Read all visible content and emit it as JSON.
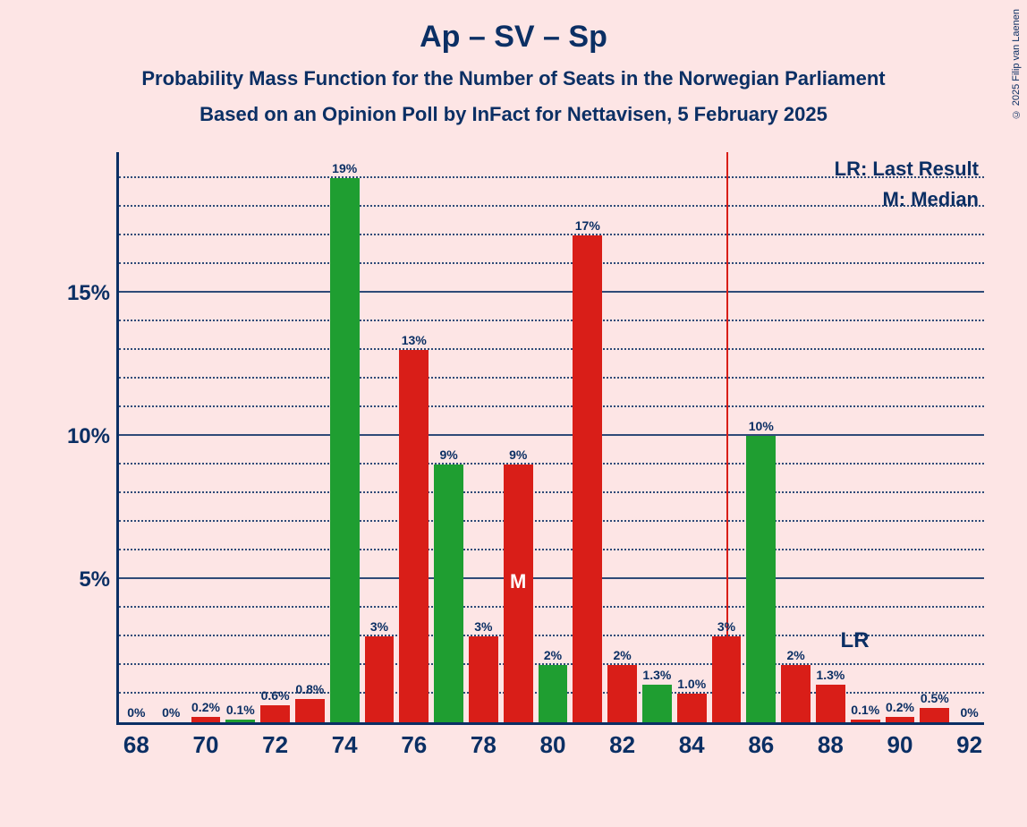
{
  "title": "Ap – SV – Sp",
  "subtitle": "Probability Mass Function for the Number of Seats in the Norwegian Parliament",
  "subtitle2": "Based on an Opinion Poll by InFact for Nettavisen, 5 February 2025",
  "copyright": "© 2025 Filip van Laenen",
  "colors": {
    "red": "#d91e18",
    "green": "#1f9e31",
    "text": "#0b2f64",
    "background": "#fde5e5"
  },
  "font": {
    "family": "Segoe UI, Arial, sans-serif",
    "title_size": 34,
    "subtitle_size": 22,
    "axis_size": 26,
    "barlabel_size": 14
  },
  "chart": {
    "type": "bar",
    "ylim": [
      0,
      20
    ],
    "ymajor": [
      5,
      10,
      15
    ],
    "yminor_step": 1,
    "xmin": 67.5,
    "xmax": 92.5,
    "xticks": [
      68,
      70,
      72,
      74,
      76,
      78,
      80,
      82,
      84,
      86,
      88,
      90,
      92
    ],
    "bar_width": 0.85,
    "lr_line_x": 85,
    "bars": [
      {
        "x": 68,
        "v": 0,
        "lab": "0%",
        "c": "red"
      },
      {
        "x": 69,
        "v": 0,
        "lab": "0%",
        "c": "red"
      },
      {
        "x": 70,
        "v": 0.2,
        "lab": "0.2%",
        "c": "red"
      },
      {
        "x": 71,
        "v": 0.1,
        "lab": "0.1%",
        "c": "green"
      },
      {
        "x": 72,
        "v": 0.6,
        "lab": "0.6%",
        "c": "red"
      },
      {
        "x": 73,
        "v": 0.8,
        "lab": "0.8%",
        "c": "red"
      },
      {
        "x": 74,
        "v": 19,
        "lab": "19%",
        "c": "green"
      },
      {
        "x": 75,
        "v": 3,
        "lab": "3%",
        "c": "red"
      },
      {
        "x": 76,
        "v": 13,
        "lab": "13%",
        "c": "red"
      },
      {
        "x": 77,
        "v": 9,
        "lab": "9%",
        "c": "green"
      },
      {
        "x": 78,
        "v": 3,
        "lab": "3%",
        "c": "red"
      },
      {
        "x": 79,
        "v": 9,
        "lab": "9%",
        "c": "red"
      },
      {
        "x": 80,
        "v": 2,
        "lab": "2%",
        "c": "green"
      },
      {
        "x": 81,
        "v": 17,
        "lab": "17%",
        "c": "red"
      },
      {
        "x": 82,
        "v": 2,
        "lab": "2%",
        "c": "red"
      },
      {
        "x": 83,
        "v": 1.3,
        "lab": "1.3%",
        "c": "green"
      },
      {
        "x": 84,
        "v": 1.0,
        "lab": "1.0%",
        "c": "red"
      },
      {
        "x": 85,
        "v": 3,
        "lab": "3%",
        "c": "red"
      },
      {
        "x": 86,
        "v": 10,
        "lab": "10%",
        "c": "green"
      },
      {
        "x": 87,
        "v": 2,
        "lab": "2%",
        "c": "red"
      },
      {
        "x": 88,
        "v": 1.3,
        "lab": "1.3%",
        "c": "red"
      },
      {
        "x": 89,
        "v": 0.1,
        "lab": "0.1%",
        "c": "red"
      },
      {
        "x": 90,
        "v": 0.2,
        "lab": "0.2%",
        "c": "red"
      },
      {
        "x": 91,
        "v": 0.5,
        "lab": "0.5%",
        "c": "red"
      },
      {
        "x": 92,
        "v": 0,
        "lab": "0%",
        "c": "red"
      }
    ],
    "median_bar_x": 79,
    "median_label": "M",
    "legend": {
      "lr": "LR: Last Result",
      "m": "M: Median"
    },
    "lr_inline": "LR"
  }
}
